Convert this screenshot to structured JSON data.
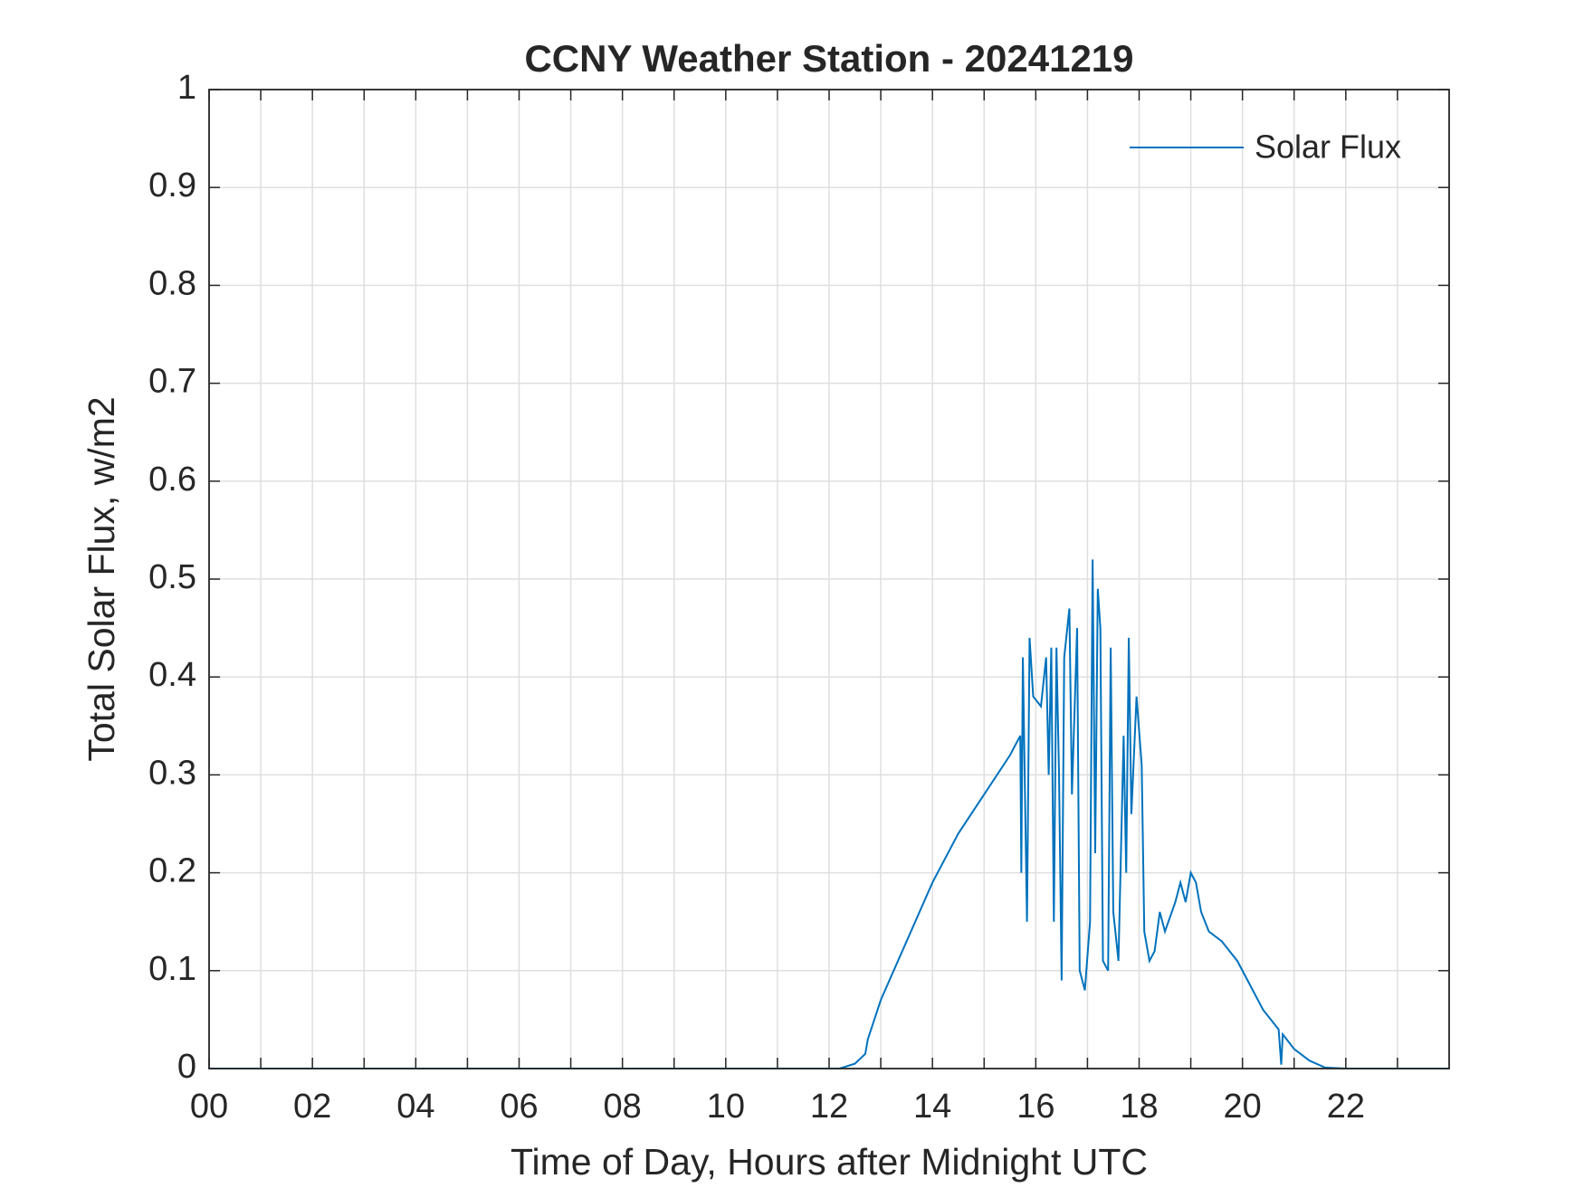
{
  "chart_data": {
    "type": "line",
    "title": "CCNY Weather Station - 20241219",
    "xlabel": "Time of Day, Hours after Midnight UTC",
    "ylabel": "Total Solar Flux, w/m2",
    "xlim": [
      0,
      24
    ],
    "ylim": [
      0,
      1
    ],
    "xticks": [
      {
        "value": 0,
        "label": "00"
      },
      {
        "value": 2,
        "label": "02"
      },
      {
        "value": 4,
        "label": "04"
      },
      {
        "value": 6,
        "label": "06"
      },
      {
        "value": 8,
        "label": "08"
      },
      {
        "value": 10,
        "label": "10"
      },
      {
        "value": 12,
        "label": "12"
      },
      {
        "value": 14,
        "label": "14"
      },
      {
        "value": 16,
        "label": "16"
      },
      {
        "value": 18,
        "label": "18"
      },
      {
        "value": 20,
        "label": "20"
      },
      {
        "value": 22,
        "label": "22"
      }
    ],
    "xminorticks": [
      1,
      3,
      5,
      7,
      9,
      11,
      13,
      15,
      17,
      19,
      21,
      23
    ],
    "yticks": [
      0,
      0.1,
      0.2,
      0.3,
      0.4,
      0.5,
      0.6,
      0.7,
      0.8,
      0.9,
      1
    ],
    "grid": true,
    "legend": "top-right",
    "series": [
      {
        "name": "Solar Flux",
        "color": "#0072bd",
        "x": [
          0,
          12.2,
          12.5,
          12.7,
          12.75,
          13,
          13.5,
          14,
          14.5,
          15,
          15.5,
          15.7,
          15.72,
          15.75,
          15.8,
          15.83,
          15.88,
          15.95,
          16.1,
          16.2,
          16.25,
          16.3,
          16.35,
          16.4,
          16.45,
          16.5,
          16.55,
          16.65,
          16.7,
          16.8,
          16.85,
          16.95,
          17.05,
          17.1,
          17.15,
          17.2,
          17.25,
          17.3,
          17.4,
          17.45,
          17.5,
          17.6,
          17.7,
          17.75,
          17.8,
          17.85,
          17.95,
          18.05,
          18.1,
          18.2,
          18.3,
          18.4,
          18.5,
          18.7,
          18.8,
          18.9,
          19.0,
          19.1,
          19.2,
          19.35,
          19.6,
          19.9,
          20.1,
          20.4,
          20.7,
          20.75,
          20.78,
          21,
          21.3,
          21.6,
          22,
          24
        ],
        "values": [
          0,
          0,
          0.005,
          0.015,
          0.03,
          0.07,
          0.13,
          0.19,
          0.24,
          0.28,
          0.32,
          0.34,
          0.2,
          0.42,
          0.25,
          0.15,
          0.44,
          0.38,
          0.37,
          0.42,
          0.3,
          0.43,
          0.15,
          0.43,
          0.3,
          0.09,
          0.42,
          0.47,
          0.28,
          0.45,
          0.1,
          0.08,
          0.15,
          0.52,
          0.22,
          0.49,
          0.45,
          0.11,
          0.1,
          0.43,
          0.16,
          0.11,
          0.34,
          0.2,
          0.44,
          0.26,
          0.38,
          0.31,
          0.14,
          0.11,
          0.12,
          0.16,
          0.14,
          0.17,
          0.19,
          0.17,
          0.2,
          0.19,
          0.16,
          0.14,
          0.13,
          0.11,
          0.09,
          0.06,
          0.04,
          0.004,
          0.035,
          0.02,
          0.008,
          0.001,
          0,
          0
        ]
      }
    ]
  }
}
